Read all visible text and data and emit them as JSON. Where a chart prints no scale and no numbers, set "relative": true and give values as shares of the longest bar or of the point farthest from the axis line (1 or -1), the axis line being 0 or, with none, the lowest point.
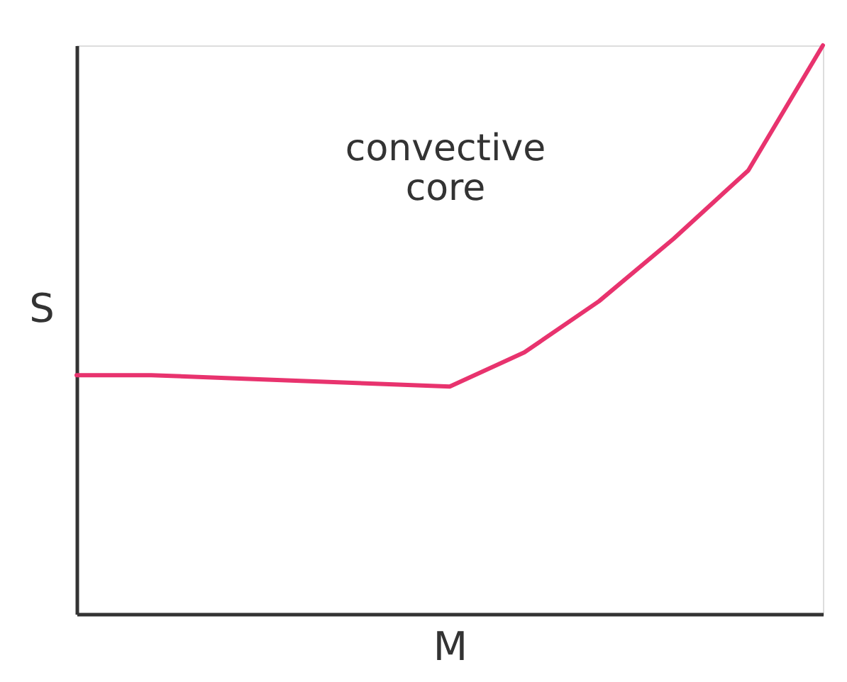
{
  "chart_data": {
    "type": "line",
    "relative": true,
    "xlabel": "M",
    "ylabel": "S",
    "annotations": [
      "convective core"
    ],
    "categories": [
      null,
      null,
      null,
      null,
      null,
      null,
      null,
      null,
      null,
      null,
      null
    ],
    "series": [
      {
        "color": "#e8336e",
        "values": [
          0.42,
          0.42,
          0.415,
          0.41,
          0.405,
          0.4,
          0.46,
          0.55,
          0.66,
          0.78,
          1.0
        ]
      }
    ],
    "grid": false,
    "marker": "none",
    "line_style": "solid",
    "tick_labels": false
  }
}
